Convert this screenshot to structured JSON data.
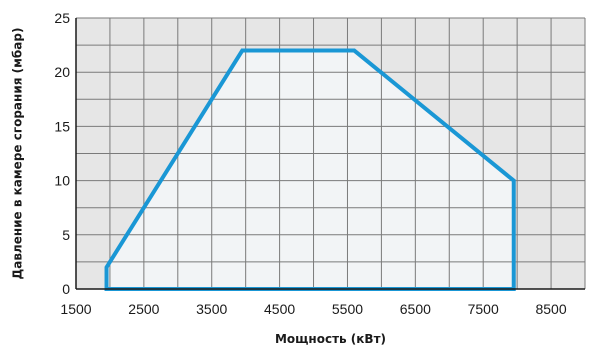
{
  "chart_data": {
    "type": "area",
    "xlabel": "Мощность (кВт)",
    "ylabel": "Давление в камере сгорания (мбар)",
    "xlim": [
      1500,
      9000
    ],
    "ylim": [
      0,
      25
    ],
    "x_ticks": [
      1500,
      2500,
      3500,
      4500,
      5500,
      6500,
      7500,
      8500
    ],
    "x_tick_labels": [
      "1500",
      "2500",
      "3500",
      "4500",
      "5500",
      "6500",
      "7500",
      "8500"
    ],
    "y_ticks": [
      0,
      5,
      10,
      15,
      20,
      25
    ],
    "y_tick_labels": [
      "0",
      "5",
      "10",
      "15",
      "20",
      "25"
    ],
    "x_grid_step": 500,
    "y_grid_step": 2.5,
    "grid": true,
    "series": [
      {
        "x": [
          1950,
          1950,
          3950,
          5600,
          7950,
          7950,
          1950
        ],
        "y": [
          0,
          2,
          22,
          22,
          10,
          0,
          0
        ]
      }
    ],
    "colors": {
      "outer_background": "#e6e6e6",
      "inner_fill": "#f2f4f6",
      "grid": "#7a7a7a",
      "axis": "#1a1a1a",
      "line": "#1a97d5"
    }
  }
}
